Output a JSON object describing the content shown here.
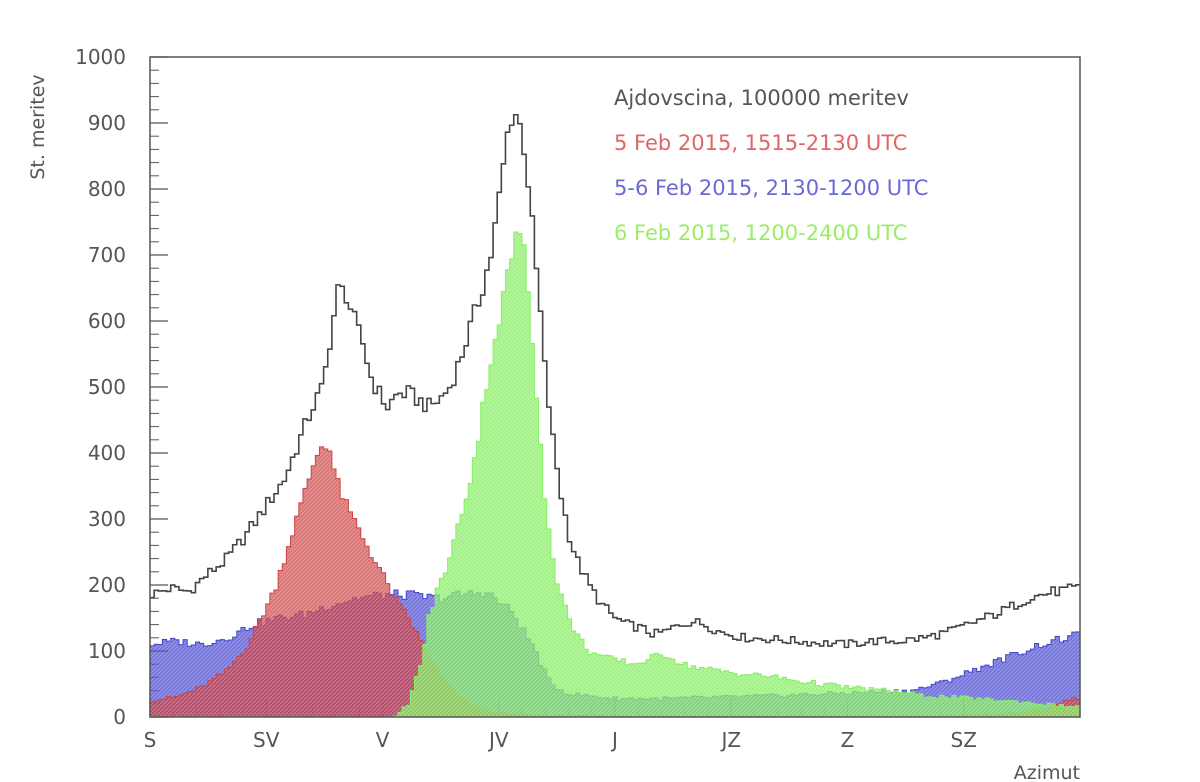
{
  "chart_data": {
    "type": "area",
    "ylabel": "St. meritev",
    "xlabel": "Azimut",
    "ylim": [
      0,
      1000
    ],
    "y_ticks": [
      "0",
      "100",
      "200",
      "300",
      "400",
      "500",
      "600",
      "700",
      "800",
      "900",
      "1000"
    ],
    "x_ticks": [
      "S",
      "SV",
      "V",
      "JV",
      "J",
      "JZ",
      "Z",
      "SZ"
    ],
    "grid": false,
    "legend": "top-right",
    "x_unit_note": "azimuth in degrees, 0-360",
    "series": [
      {
        "name": "Ajdovscina, 100000 meritev",
        "style": "outline",
        "color": "#444444",
        "points": [
          [
            0,
            185
          ],
          [
            8,
            195
          ],
          [
            15,
            190
          ],
          [
            22,
            215
          ],
          [
            30,
            240
          ],
          [
            38,
            280
          ],
          [
            45,
            320
          ],
          [
            52,
            360
          ],
          [
            58,
            420
          ],
          [
            63,
            470
          ],
          [
            67,
            500
          ],
          [
            70,
            580
          ],
          [
            73,
            650
          ],
          [
            76,
            640
          ],
          [
            80,
            590
          ],
          [
            83,
            560
          ],
          [
            85,
            520
          ],
          [
            88,
            495
          ],
          [
            92,
            470
          ],
          [
            96,
            490
          ],
          [
            100,
            490
          ],
          [
            104,
            480
          ],
          [
            108,
            470
          ],
          [
            112,
            480
          ],
          [
            116,
            500
          ],
          [
            120,
            540
          ],
          [
            124,
            590
          ],
          [
            128,
            640
          ],
          [
            132,
            700
          ],
          [
            135,
            780
          ],
          [
            137,
            840
          ],
          [
            139,
            900
          ],
          [
            141,
            920
          ],
          [
            143,
            900
          ],
          [
            145,
            860
          ],
          [
            147,
            790
          ],
          [
            149,
            700
          ],
          [
            151,
            620
          ],
          [
            153,
            520
          ],
          [
            156,
            420
          ],
          [
            159,
            340
          ],
          [
            162,
            280
          ],
          [
            165,
            240
          ],
          [
            170,
            200
          ],
          [
            175,
            170
          ],
          [
            180,
            150
          ],
          [
            185,
            140
          ],
          [
            190,
            135
          ],
          [
            195,
            125
          ],
          [
            200,
            130
          ],
          [
            205,
            140
          ],
          [
            210,
            145
          ],
          [
            215,
            140
          ],
          [
            220,
            130
          ],
          [
            230,
            120
          ],
          [
            240,
            118
          ],
          [
            250,
            115
          ],
          [
            260,
            112
          ],
          [
            270,
            110
          ],
          [
            280,
            115
          ],
          [
            290,
            115
          ],
          [
            300,
            120
          ],
          [
            310,
            130
          ],
          [
            320,
            145
          ],
          [
            330,
            160
          ],
          [
            340,
            180
          ],
          [
            350,
            190
          ],
          [
            360,
            195
          ]
        ]
      },
      {
        "name": "5 Feb 2015, 1515-2130 UTC",
        "style": "filled",
        "color": "#cc4444",
        "points": [
          [
            0,
            25
          ],
          [
            10,
            30
          ],
          [
            20,
            45
          ],
          [
            30,
            70
          ],
          [
            38,
            110
          ],
          [
            43,
            150
          ],
          [
            48,
            190
          ],
          [
            52,
            240
          ],
          [
            56,
            290
          ],
          [
            60,
            340
          ],
          [
            63,
            380
          ],
          [
            66,
            410
          ],
          [
            68,
            415
          ],
          [
            70,
            400
          ],
          [
            72,
            360
          ],
          [
            76,
            320
          ],
          [
            80,
            290
          ],
          [
            84,
            260
          ],
          [
            88,
            230
          ],
          [
            92,
            200
          ],
          [
            96,
            170
          ],
          [
            100,
            150
          ],
          [
            104,
            120
          ],
          [
            108,
            90
          ],
          [
            112,
            65
          ],
          [
            116,
            45
          ],
          [
            120,
            30
          ],
          [
            126,
            15
          ],
          [
            132,
            8
          ],
          [
            140,
            4
          ],
          [
            150,
            2
          ],
          [
            200,
            1
          ],
          [
            300,
            1
          ],
          [
            330,
            4
          ],
          [
            345,
            10
          ],
          [
            355,
            25
          ],
          [
            360,
            30
          ]
        ]
      },
      {
        "name": "5-6 Feb 2015, 2130-1200 UTC",
        "style": "filled",
        "color": "#4444cc",
        "points": [
          [
            0,
            110
          ],
          [
            10,
            115
          ],
          [
            20,
            110
          ],
          [
            30,
            120
          ],
          [
            40,
            140
          ],
          [
            50,
            150
          ],
          [
            60,
            155
          ],
          [
            70,
            170
          ],
          [
            80,
            180
          ],
          [
            90,
            185
          ],
          [
            100,
            185
          ],
          [
            110,
            180
          ],
          [
            120,
            185
          ],
          [
            130,
            190
          ],
          [
            140,
            160
          ],
          [
            148,
            110
          ],
          [
            155,
            50
          ],
          [
            162,
            35
          ],
          [
            170,
            32
          ],
          [
            180,
            28
          ],
          [
            200,
            28
          ],
          [
            220,
            30
          ],
          [
            240,
            32
          ],
          [
            260,
            35
          ],
          [
            280,
            38
          ],
          [
            295,
            40
          ],
          [
            305,
            50
          ],
          [
            315,
            65
          ],
          [
            325,
            80
          ],
          [
            335,
            95
          ],
          [
            345,
            110
          ],
          [
            355,
            120
          ],
          [
            360,
            125
          ]
        ]
      },
      {
        "name": "6 Feb 2015, 1200-2400 UTC",
        "style": "filled",
        "color": "#88ee66",
        "points": [
          [
            0,
            0
          ],
          [
            95,
            0
          ],
          [
            100,
            20
          ],
          [
            105,
            80
          ],
          [
            108,
            150
          ],
          [
            112,
            200
          ],
          [
            116,
            240
          ],
          [
            120,
            300
          ],
          [
            124,
            360
          ],
          [
            127,
            420
          ],
          [
            130,
            500
          ],
          [
            133,
            560
          ],
          [
            136,
            620
          ],
          [
            139,
            680
          ],
          [
            141,
            720
          ],
          [
            143,
            740
          ],
          [
            145,
            700
          ],
          [
            147,
            620
          ],
          [
            149,
            520
          ],
          [
            151,
            430
          ],
          [
            153,
            330
          ],
          [
            155,
            260
          ],
          [
            158,
            200
          ],
          [
            162,
            150
          ],
          [
            166,
            120
          ],
          [
            170,
            100
          ],
          [
            176,
            90
          ],
          [
            182,
            85
          ],
          [
            188,
            80
          ],
          [
            194,
            90
          ],
          [
            200,
            95
          ],
          [
            206,
            80
          ],
          [
            212,
            75
          ],
          [
            220,
            70
          ],
          [
            230,
            65
          ],
          [
            240,
            62
          ],
          [
            250,
            55
          ],
          [
            260,
            50
          ],
          [
            270,
            45
          ],
          [
            280,
            42
          ],
          [
            290,
            38
          ],
          [
            300,
            32
          ],
          [
            310,
            30
          ],
          [
            320,
            28
          ],
          [
            330,
            25
          ],
          [
            340,
            22
          ],
          [
            350,
            18
          ],
          [
            360,
            15
          ]
        ]
      }
    ]
  }
}
